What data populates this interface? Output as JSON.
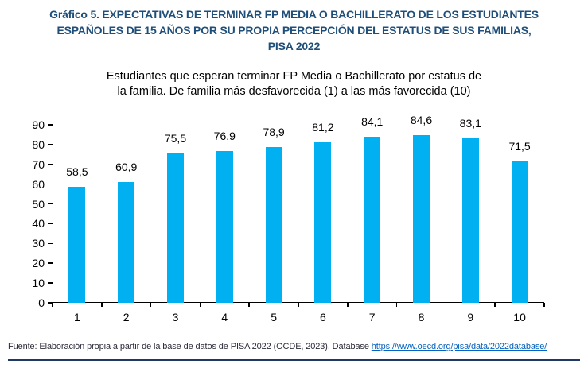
{
  "figure": {
    "title_lines": [
      "Gráfico 5. EXPECTATIVAS DE TERMINAR FP MEDIA O BACHILLERATO DE LOS ESTUDIANTES",
      "ESPAÑOLES DE 15 AÑOS POR SU PROPIA PERCEPCIÓN DEL ESTATUS DE SUS FAMILIAS,",
      "PISA 2022"
    ],
    "subtitle_lines": [
      "Estudiantes que esperan terminar FP Media o Bachillerato por estatus de",
      "la familia. De familia más desfavorecida (1) a las más favorecida (10)"
    ],
    "footer": {
      "text": "Fuente: Elaboración propia a partir de la base de datos de PISA 2022 (OCDE, 2023). Database ",
      "link_text": "https://www.oecd.org/pisa/data/2022database/"
    }
  },
  "colors": {
    "title": "#1F4E79",
    "bar": "#00B0F0",
    "axis": "#000000",
    "value_label": "#000000",
    "link": "#0563C1",
    "rule": "#1F3864",
    "footer_text": "#2d2d3a"
  },
  "chart_data": {
    "type": "bar",
    "title": "Estudiantes que esperan terminar FP Media o Bachillerato por estatus de la familia. De familia más desfavorecida (1) a las más favorecida (10)",
    "categories": [
      "1",
      "2",
      "3",
      "4",
      "5",
      "6",
      "7",
      "8",
      "9",
      "10"
    ],
    "values": [
      58.5,
      60.9,
      75.5,
      76.9,
      78.9,
      81.2,
      84.1,
      84.6,
      83.1,
      71.5
    ],
    "value_labels": [
      "58,5",
      "60,9",
      "75,5",
      "76,9",
      "78,9",
      "81,2",
      "84,1",
      "84,6",
      "83,1",
      "71,5"
    ],
    "xlabel": "",
    "ylabel": "",
    "ylim": [
      0,
      90
    ],
    "y_ticks": [
      0,
      10,
      20,
      30,
      40,
      50,
      60,
      70,
      80,
      90
    ],
    "grid": false,
    "legend": false,
    "bar_color": "#00B0F0"
  }
}
